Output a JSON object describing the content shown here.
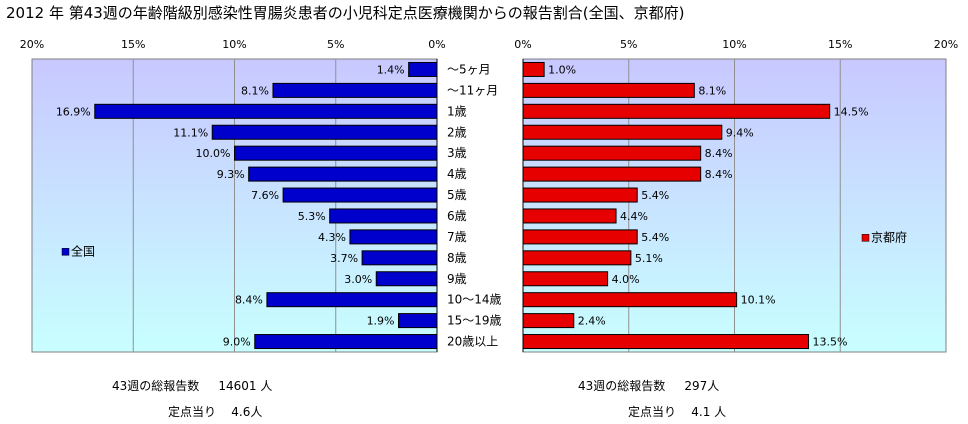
{
  "title": "2012 年 第43週の年齢階級別感染性胃腸炎患者の小児科定点医療機関からの報告割合(全国、京都府)",
  "chart_data": {
    "type": "bar",
    "orientation": "horizontal",
    "categories": [
      "～5ヶ月",
      "～11ヶ月",
      "1歳",
      "2歳",
      "3歳",
      "4歳",
      "5歳",
      "6歳",
      "7歳",
      "8歳",
      "9歳",
      "10～14歳",
      "15～19歳",
      "20歳以上"
    ],
    "series": [
      {
        "name": "全国",
        "color": "#0000cc",
        "direction": "left",
        "values": [
          1.4,
          8.1,
          16.9,
          11.1,
          10.0,
          9.3,
          7.6,
          5.3,
          4.3,
          3.7,
          3.0,
          8.4,
          1.9,
          9.0
        ],
        "labels": [
          "1.4%",
          "8.1%",
          "16.9%",
          "11.1%",
          "10.0%",
          "9.3%",
          "7.6%",
          "5.3%",
          "4.3%",
          "3.7%",
          "3.0%",
          "8.4%",
          "1.9%",
          "9.0%"
        ]
      },
      {
        "name": "京都府",
        "color": "#e60000",
        "direction": "right",
        "values": [
          1.0,
          8.1,
          14.5,
          9.4,
          8.4,
          8.4,
          5.4,
          4.4,
          5.4,
          5.1,
          4.0,
          10.1,
          2.4,
          13.5
        ],
        "labels": [
          "1.0%",
          "8.1%",
          "14.5%",
          "9.4%",
          "8.4%",
          "8.4%",
          "5.4%",
          "4.4%",
          "5.4%",
          "5.1%",
          "4.0%",
          "10.1%",
          "2.4%",
          "13.5%"
        ]
      }
    ],
    "xlim": [
      0,
      20
    ],
    "left_ticks": [
      "20%",
      "15%",
      "10%",
      "5%",
      "0%"
    ],
    "right_ticks": [
      "0%",
      "5%",
      "10%",
      "15%",
      "20%"
    ],
    "legend_placement": "inside plot, left-middle (全国) and right-middle (京都府)",
    "grid": true
  },
  "summary": {
    "national": {
      "total_label": "43週の総報告数",
      "total_value": "14601 人",
      "per_label": "定点当り",
      "per_value": "4.6人"
    },
    "kyoto": {
      "total_label": "43週の総報告数",
      "total_value": "297人",
      "per_label": "定点当り",
      "per_value": "4.1 人"
    }
  },
  "colors": {
    "plot_top": "#c8c8ff",
    "plot_bottom": "#c8ffff",
    "grid": "#909090",
    "axis": "#000000"
  }
}
